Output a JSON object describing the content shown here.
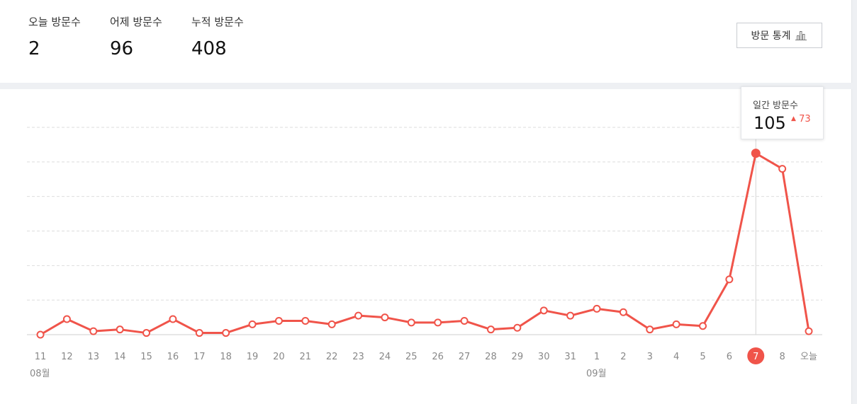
{
  "stats": [
    {
      "label": "오늘 방문수",
      "value": "2"
    },
    {
      "label": "어제 방문수",
      "value": "96"
    },
    {
      "label": "누적 방문수",
      "value": "408"
    }
  ],
  "stats_button": {
    "label": "방문 통계",
    "icon": "bar-chart-icon"
  },
  "tooltip": {
    "label": "일간 방문수",
    "value": "105",
    "delta": "73",
    "delta_icon": "triangle-up-icon"
  },
  "colors": {
    "line": "#f0544a",
    "grid": "#dddddd",
    "axis_text": "#888888",
    "highlight": "#f0544a"
  },
  "chart_data": {
    "type": "line",
    "categories": [
      "11",
      "12",
      "13",
      "14",
      "15",
      "16",
      "17",
      "18",
      "19",
      "20",
      "21",
      "22",
      "23",
      "24",
      "25",
      "26",
      "27",
      "28",
      "29",
      "30",
      "31",
      "1",
      "2",
      "3",
      "4",
      "5",
      "6",
      "7",
      "8",
      "오늘"
    ],
    "month_labels": [
      {
        "label": "08월",
        "at_index": 0
      },
      {
        "label": "09월",
        "at_index": 21
      }
    ],
    "series": [
      {
        "values": [
          0,
          9,
          2,
          3,
          1,
          9,
          1,
          1,
          6,
          8,
          8,
          6,
          11,
          10,
          7,
          7,
          8,
          3,
          4,
          14,
          11,
          15,
          13,
          3,
          6,
          5,
          32,
          105,
          96,
          2
        ]
      }
    ],
    "highlight_index": 27,
    "ylim": [
      0,
      120
    ],
    "grid": true
  }
}
